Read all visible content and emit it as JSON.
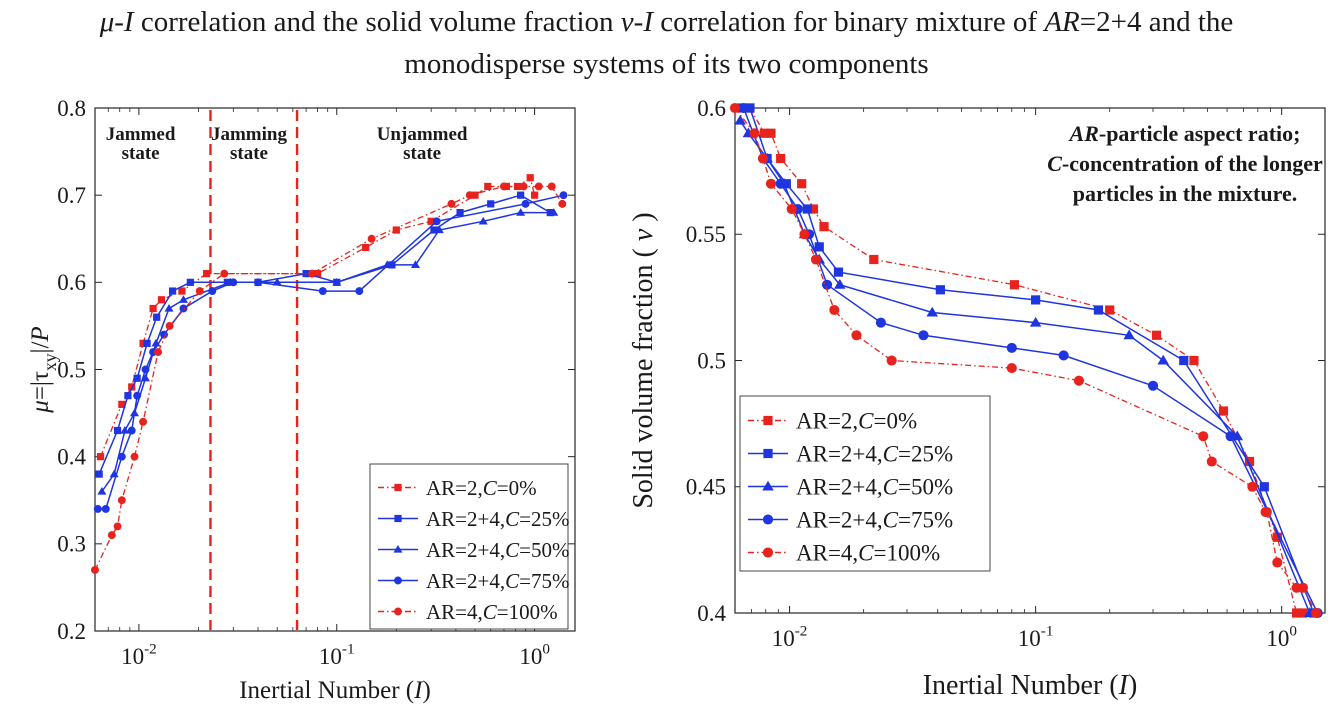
{
  "figure_title": {
    "line1": {
      "a": "μ-I",
      "b": " correlation and the solid volume fraction ",
      "c": "ν-I",
      "d": "  correlation for binary mixture of ",
      "e": "AR",
      "f": "=2+4 and the"
    },
    "line2": "monodisperse systems of its two components"
  },
  "colors": {
    "red": "#e8221c",
    "blue": "#1f35e0",
    "axis": "#262626"
  },
  "chart_data": [
    {
      "type": "line",
      "xscale": "log",
      "xlim": [
        0.006,
        1.6
      ],
      "ylim": [
        0.2,
        0.8
      ],
      "xticks": [
        {
          "v": 0.01,
          "base": "10",
          "exp": "-2"
        },
        {
          "v": 0.1,
          "base": "10",
          "exp": "-1"
        },
        {
          "v": 1,
          "base": "10",
          "exp": "0"
        }
      ],
      "yticks": [
        {
          "v": 0.2,
          "label": "0.2"
        },
        {
          "v": 0.3,
          "label": "0.3"
        },
        {
          "v": 0.4,
          "label": "0.4"
        },
        {
          "v": 0.5,
          "label": "0.5"
        },
        {
          "v": 0.6,
          "label": "0.6"
        },
        {
          "v": 0.7,
          "label": "0.7"
        },
        {
          "v": 0.8,
          "label": "0.8"
        }
      ],
      "xlabel": {
        "text": "Inertial Number (",
        "italic": "I",
        "close": ")"
      },
      "ylabel": "μ=|τxy|/P",
      "grid": false,
      "legend_position": "bottom-right",
      "vlines": [
        0.023,
        0.063
      ],
      "regions": [
        {
          "lines": [
            "Jammed",
            "state"
          ],
          "x": 0.0102
        },
        {
          "lines": [
            "Jamming",
            "state"
          ],
          "x": 0.036
        },
        {
          "lines": [
            "Unjammed",
            "state"
          ],
          "x": 0.27
        }
      ],
      "series": [
        {
          "label": {
            "pre": "AR=2,",
            "it": "C",
            "post": "=0%"
          },
          "color": "#e8221c",
          "marker": "square",
          "dash": "6,3,1.5,3",
          "x": [
            0.0064,
            0.0082,
            0.0092,
            0.0105,
            0.0118,
            0.013,
            0.0165,
            0.022,
            0.08,
            0.14,
            0.2,
            0.3,
            0.5,
            0.58,
            0.72,
            0.82,
            0.95,
            1.0
          ],
          "y": [
            0.4,
            0.46,
            0.48,
            0.53,
            0.57,
            0.58,
            0.59,
            0.61,
            0.61,
            0.64,
            0.66,
            0.67,
            0.7,
            0.71,
            0.71,
            0.71,
            0.72,
            0.7
          ]
        },
        {
          "label": {
            "pre": "AR=2+4,",
            "it": "C",
            "post": "=25%"
          },
          "color": "#1f35e0",
          "marker": "square",
          "dash": "",
          "x": [
            0.0063,
            0.0078,
            0.0088,
            0.0098,
            0.011,
            0.0123,
            0.0148,
            0.0182,
            0.028,
            0.04,
            0.07,
            0.1,
            0.19,
            0.31,
            0.42,
            0.6,
            0.85,
            1.2
          ],
          "y": [
            0.38,
            0.43,
            0.47,
            0.49,
            0.53,
            0.56,
            0.59,
            0.6,
            0.6,
            0.6,
            0.61,
            0.6,
            0.62,
            0.66,
            0.68,
            0.69,
            0.7,
            0.68
          ]
        },
        {
          "label": {
            "pre": "AR=2+4,",
            "it": "C",
            "post": "=50%"
          },
          "color": "#1f35e0",
          "marker": "triangle",
          "dash": "",
          "x": [
            0.0065,
            0.0075,
            0.0085,
            0.0095,
            0.0108,
            0.0122,
            0.0142,
            0.0168,
            0.029,
            0.05,
            0.1,
            0.18,
            0.25,
            0.33,
            0.55,
            0.85,
            1.25
          ],
          "y": [
            0.36,
            0.38,
            0.43,
            0.45,
            0.49,
            0.53,
            0.57,
            0.58,
            0.6,
            0.6,
            0.6,
            0.62,
            0.62,
            0.66,
            0.67,
            0.68,
            0.68
          ]
        },
        {
          "label": {
            "pre": "AR=2+4,",
            "it": "C",
            "post": "=75%"
          },
          "color": "#1f35e0",
          "marker": "circle",
          "dash": "",
          "x": [
            0.0062,
            0.0068,
            0.0082,
            0.0092,
            0.0098,
            0.0108,
            0.0118,
            0.0134,
            0.0168,
            0.0235,
            0.03,
            0.04,
            0.085,
            0.13,
            0.32,
            0.9,
            1.4
          ],
          "y": [
            0.34,
            0.34,
            0.4,
            0.43,
            0.47,
            0.5,
            0.52,
            0.54,
            0.57,
            0.59,
            0.6,
            0.6,
            0.59,
            0.59,
            0.67,
            0.69,
            0.7
          ]
        },
        {
          "label": {
            "pre": "AR=4,",
            "it": "C",
            "post": "=100%"
          },
          "color": "#e8221c",
          "marker": "circle",
          "dash": "6,3,1.5,3",
          "x": [
            0.006,
            0.0073,
            0.0078,
            0.0082,
            0.0095,
            0.0105,
            0.0125,
            0.0143,
            0.0203,
            0.027,
            0.075,
            0.15,
            0.38,
            0.47,
            0.7,
            0.88,
            1.05,
            1.22,
            1.38
          ],
          "y": [
            0.27,
            0.31,
            0.32,
            0.35,
            0.4,
            0.44,
            0.52,
            0.55,
            0.59,
            0.61,
            0.61,
            0.65,
            0.69,
            0.7,
            0.71,
            0.71,
            0.71,
            0.71,
            0.69
          ]
        }
      ]
    },
    {
      "type": "line",
      "xscale": "log",
      "xlim": [
        0.006,
        1.5
      ],
      "ylim": [
        0.4,
        0.6
      ],
      "xticks": [
        {
          "v": 0.01,
          "base": "10",
          "exp": "-2"
        },
        {
          "v": 0.1,
          "base": "10",
          "exp": "-1"
        },
        {
          "v": 1,
          "base": "10",
          "exp": "0"
        }
      ],
      "yticks": [
        {
          "v": 0.4,
          "label": "0.4"
        },
        {
          "v": 0.45,
          "label": "0.45"
        },
        {
          "v": 0.5,
          "label": "0.5"
        },
        {
          "v": 0.55,
          "label": "0.55"
        },
        {
          "v": 0.6,
          "label": "0.6"
        }
      ],
      "xlabel": {
        "text": "Inertial Number (",
        "italic": "I",
        "close": ")"
      },
      "ylabel": {
        "text": "Solid volume fraction ( ",
        "italic": "ν",
        "close": " )"
      },
      "grid": false,
      "legend_position": "bottom-left",
      "annotation": {
        "line1": {
          "it": "AR",
          "rest": "-particle aspect ratio;"
        },
        "line2": {
          "it": "C",
          "rest": "-concentration of the longer"
        },
        "line3": "particles in the mixture."
      },
      "series": [
        {
          "label": {
            "pre": "AR=2,",
            "it": "C",
            "post": "=0%"
          },
          "color": "#e8221c",
          "marker": "square",
          "dash": "6,3,1.5,3",
          "x": [
            0.0069,
            0.0079,
            0.0084,
            0.0092,
            0.0112,
            0.0125,
            0.0138,
            0.022,
            0.082,
            0.2,
            0.31,
            0.44,
            0.58,
            0.74,
            0.96,
            1.15,
            1.22
          ],
          "y": [
            0.6,
            0.59,
            0.59,
            0.58,
            0.57,
            0.56,
            0.553,
            0.54,
            0.53,
            0.52,
            0.51,
            0.5,
            0.48,
            0.46,
            0.43,
            0.4,
            0.4
          ]
        },
        {
          "label": {
            "pre": "AR=2+4,",
            "it": "C",
            "post": "=25%"
          },
          "color": "#1f35e0",
          "marker": "square",
          "dash": "",
          "x": [
            0.0064,
            0.0069,
            0.0081,
            0.0097,
            0.0118,
            0.0132,
            0.0158,
            0.041,
            0.1,
            0.18,
            0.4,
            0.85,
            1.35
          ],
          "y": [
            0.6,
            0.6,
            0.58,
            0.57,
            0.56,
            0.545,
            0.535,
            0.528,
            0.524,
            0.52,
            0.5,
            0.45,
            0.4
          ]
        },
        {
          "label": {
            "pre": "AR=2+4,",
            "it": "C",
            "post": "=50%"
          },
          "color": "#1f35e0",
          "marker": "triangle",
          "dash": "",
          "x": [
            0.0063,
            0.0068,
            0.0081,
            0.0095,
            0.0115,
            0.0132,
            0.016,
            0.038,
            0.1,
            0.24,
            0.33,
            0.66,
            1.3
          ],
          "y": [
            0.595,
            0.59,
            0.58,
            0.57,
            0.55,
            0.54,
            0.53,
            0.519,
            0.515,
            0.51,
            0.5,
            0.47,
            0.4
          ]
        },
        {
          "label": {
            "pre": "AR=2+4,",
            "it": "C",
            "post": "=75%"
          },
          "color": "#1f35e0",
          "marker": "circle",
          "dash": "",
          "x": [
            0.0065,
            0.0078,
            0.0092,
            0.0108,
            0.012,
            0.0142,
            0.0235,
            0.035,
            0.08,
            0.13,
            0.3,
            0.62,
            1.4
          ],
          "y": [
            0.6,
            0.58,
            0.57,
            0.56,
            0.55,
            0.53,
            0.515,
            0.51,
            0.505,
            0.502,
            0.49,
            0.47,
            0.4
          ]
        },
        {
          "label": {
            "pre": "AR=4,",
            "it": "C",
            "post": "=100%"
          },
          "color": "#e8221c",
          "marker": "circle",
          "dash": "6,3,1.5,3",
          "x": [
            0.006,
            0.0072,
            0.0078,
            0.0084,
            0.0102,
            0.0115,
            0.0128,
            0.0152,
            0.0187,
            0.026,
            0.08,
            0.15,
            0.48,
            0.52,
            0.76,
            0.86,
            0.87,
            0.96,
            1.15,
            1.22,
            1.38
          ],
          "y": [
            0.6,
            0.59,
            0.58,
            0.57,
            0.56,
            0.55,
            0.54,
            0.52,
            0.51,
            0.5,
            0.497,
            0.492,
            0.47,
            0.46,
            0.45,
            0.44,
            0.44,
            0.42,
            0.41,
            0.41,
            0.4
          ]
        }
      ]
    }
  ]
}
